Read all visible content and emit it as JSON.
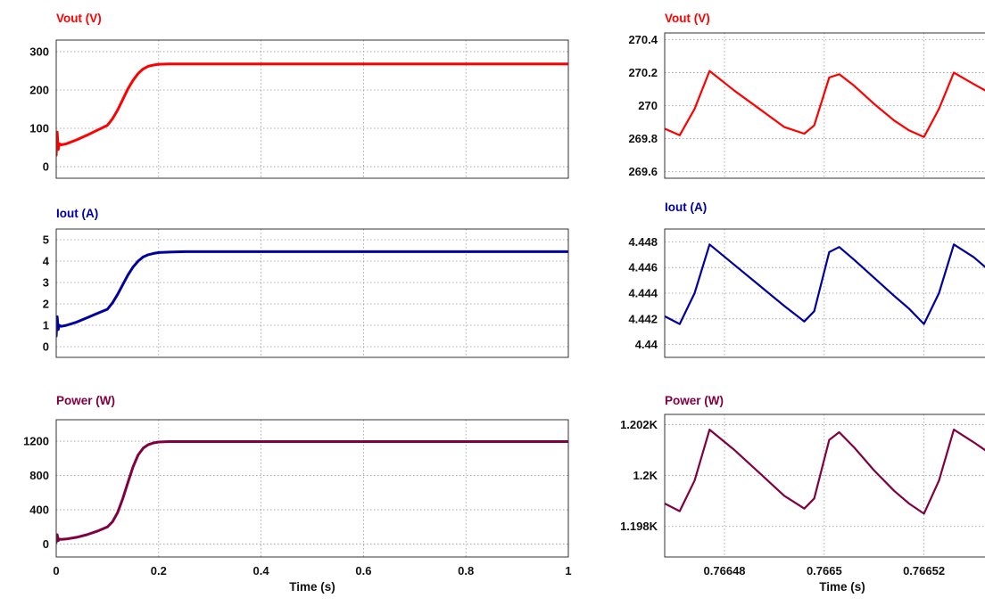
{
  "colors": {
    "vout": "#ff0000",
    "iout": "#0000a0",
    "power": "#800040"
  },
  "chart_data": [
    {
      "id": "left-vout",
      "type": "line",
      "title": "Vout (V)",
      "color": "#ff0000",
      "xlim": [
        0,
        1
      ],
      "ylim": [
        -30,
        330
      ],
      "yticks": [
        0,
        100,
        200,
        300
      ],
      "ytick_labels": [
        "0",
        "100",
        "200",
        "300"
      ],
      "xticks": [
        0,
        0.2,
        0.4,
        0.6,
        0.8,
        1
      ],
      "xtick_labels": [],
      "grid": true,
      "series": [
        {
          "x": [
            0,
            0.002,
            0.004,
            0.006,
            0.01,
            0.02,
            0.04,
            0.06,
            0.08,
            0.1,
            0.11,
            0.12,
            0.13,
            0.14,
            0.15,
            0.16,
            0.17,
            0.18,
            0.19,
            0.2,
            0.22,
            0.25,
            0.3,
            0.4,
            0.6,
            0.8,
            1.0
          ],
          "y": [
            30,
            90,
            45,
            60,
            57,
            60,
            70,
            82,
            95,
            108,
            125,
            148,
            175,
            203,
            225,
            243,
            255,
            262,
            265,
            267,
            268,
            268,
            268,
            268,
            268,
            268,
            268
          ]
        }
      ]
    },
    {
      "id": "left-iout",
      "type": "line",
      "title": "Iout (A)",
      "color": "#0000a0",
      "xlim": [
        0,
        1
      ],
      "ylim": [
        -0.5,
        5.5
      ],
      "yticks": [
        0,
        1,
        2,
        3,
        4,
        5
      ],
      "ytick_labels": [
        "0",
        "1",
        "2",
        "3",
        "4",
        "5"
      ],
      "xticks": [
        0,
        0.2,
        0.4,
        0.6,
        0.8,
        1
      ],
      "xtick_labels": [],
      "grid": true,
      "series": [
        {
          "x": [
            0,
            0.002,
            0.004,
            0.006,
            0.01,
            0.02,
            0.04,
            0.06,
            0.08,
            0.1,
            0.11,
            0.12,
            0.13,
            0.14,
            0.15,
            0.16,
            0.17,
            0.18,
            0.19,
            0.2,
            0.22,
            0.25,
            0.3,
            0.4,
            0.6,
            0.8,
            1.0
          ],
          "y": [
            0.5,
            1.4,
            0.8,
            1.0,
            0.95,
            1.0,
            1.15,
            1.35,
            1.55,
            1.75,
            2.05,
            2.45,
            2.9,
            3.35,
            3.72,
            4.0,
            4.2,
            4.3,
            4.36,
            4.4,
            4.42,
            4.44,
            4.44,
            4.44,
            4.44,
            4.44,
            4.44
          ]
        }
      ]
    },
    {
      "id": "left-power",
      "type": "line",
      "title": "Power (W)",
      "color": "#800040",
      "xlim": [
        0,
        1
      ],
      "ylim": [
        -150,
        1450
      ],
      "yticks": [
        0,
        400,
        800,
        1200
      ],
      "ytick_labels": [
        "0",
        "400",
        "800",
        "1200"
      ],
      "xticks": [
        0,
        0.2,
        0.4,
        0.6,
        0.8,
        1
      ],
      "xtick_labels": [
        "0",
        "0.2",
        "0.4",
        "0.6",
        "0.8",
        "1"
      ],
      "xlabel": "Time (s)",
      "grid": true,
      "series": [
        {
          "x": [
            0,
            0.002,
            0.004,
            0.006,
            0.01,
            0.02,
            0.04,
            0.06,
            0.08,
            0.1,
            0.11,
            0.12,
            0.13,
            0.14,
            0.15,
            0.16,
            0.17,
            0.18,
            0.19,
            0.2,
            0.22,
            0.25,
            0.3,
            0.4,
            0.6,
            0.8,
            1.0
          ],
          "y": [
            20,
            110,
            40,
            60,
            55,
            60,
            80,
            110,
            150,
            200,
            260,
            370,
            530,
            720,
            900,
            1040,
            1120,
            1160,
            1180,
            1190,
            1195,
            1195,
            1195,
            1195,
            1195,
            1195,
            1195
          ]
        }
      ]
    },
    {
      "id": "right-vout",
      "type": "line",
      "title": "Vout (V)",
      "color": "#ff0000",
      "xlim": [
        0.766468,
        0.766536
      ],
      "ylim": [
        269.56,
        270.44
      ],
      "yticks": [
        269.6,
        269.8,
        270,
        270.2,
        270.4
      ],
      "ytick_labels": [
        "269.6",
        "269.8",
        "270",
        "270.2",
        "270.4"
      ],
      "xticks": [
        0.76648,
        0.7665,
        0.76652
      ],
      "xtick_labels": [],
      "grid": true,
      "series": [
        {
          "x": [
            0.766468,
            0.766471,
            0.766474,
            0.766477,
            0.766482,
            0.766487,
            0.766492,
            0.766496,
            0.766498,
            0.766501,
            0.766503,
            0.766506,
            0.76651,
            0.766514,
            0.766517,
            0.76652,
            0.766523,
            0.766526,
            0.76653,
            0.766533,
            0.766536
          ],
          "y": [
            269.86,
            269.82,
            269.98,
            270.21,
            270.09,
            269.98,
            269.87,
            269.83,
            269.88,
            270.17,
            270.19,
            270.12,
            270.01,
            269.91,
            269.85,
            269.81,
            269.98,
            270.2,
            270.13,
            270.08,
            270.03
          ]
        }
      ]
    },
    {
      "id": "right-iout",
      "type": "line",
      "title": "Iout (A)",
      "color": "#0000a0",
      "xlim": [
        0.766468,
        0.766536
      ],
      "ylim": [
        4.439,
        4.449
      ],
      "yticks": [
        4.44,
        4.442,
        4.444,
        4.446,
        4.448
      ],
      "ytick_labels": [
        "4.44",
        "4.442",
        "4.444",
        "4.446",
        "4.448"
      ],
      "xticks": [
        0.76648,
        0.7665,
        0.76652
      ],
      "xtick_labels": [],
      "grid": true,
      "series": [
        {
          "x": [
            0.766468,
            0.766471,
            0.766474,
            0.766477,
            0.766482,
            0.766487,
            0.766492,
            0.766496,
            0.766498,
            0.766501,
            0.766503,
            0.766506,
            0.76651,
            0.766514,
            0.766517,
            0.76652,
            0.766523,
            0.766526,
            0.76653,
            0.766533,
            0.766536
          ],
          "y": [
            4.4422,
            4.4416,
            4.444,
            4.4478,
            4.4462,
            4.4446,
            4.443,
            4.4418,
            4.4426,
            4.4472,
            4.4476,
            4.4466,
            4.4452,
            4.4438,
            4.4428,
            4.4416,
            4.444,
            4.4478,
            4.4468,
            4.4458,
            4.4448
          ]
        }
      ]
    },
    {
      "id": "right-power",
      "type": "line",
      "title": "Power (W)",
      "color": "#800040",
      "xlim": [
        0.766468,
        0.766536
      ],
      "ylim": [
        1196.8,
        1202.4
      ],
      "yticks": [
        1198,
        1200,
        1202
      ],
      "ytick_labels": [
        "1.198K",
        "1.2K",
        "1.202K"
      ],
      "xticks": [
        0.76648,
        0.7665,
        0.76652
      ],
      "xtick_labels": [
        "0.76648",
        "0.7665",
        "0.76652"
      ],
      "xlabel": "Time (s)",
      "grid": true,
      "series": [
        {
          "x": [
            0.766468,
            0.766471,
            0.766474,
            0.766477,
            0.766482,
            0.766487,
            0.766492,
            0.766496,
            0.766498,
            0.766501,
            0.766503,
            0.766506,
            0.76651,
            0.766514,
            0.766517,
            0.76652,
            0.766523,
            0.766526,
            0.76653,
            0.766533,
            0.766536
          ],
          "y": [
            1198.9,
            1198.6,
            1199.8,
            1201.8,
            1201.0,
            1200.1,
            1199.2,
            1198.7,
            1199.1,
            1201.4,
            1201.7,
            1201.1,
            1200.2,
            1199.4,
            1198.9,
            1198.5,
            1199.8,
            1201.8,
            1201.3,
            1200.9,
            1200.5
          ]
        }
      ]
    }
  ]
}
